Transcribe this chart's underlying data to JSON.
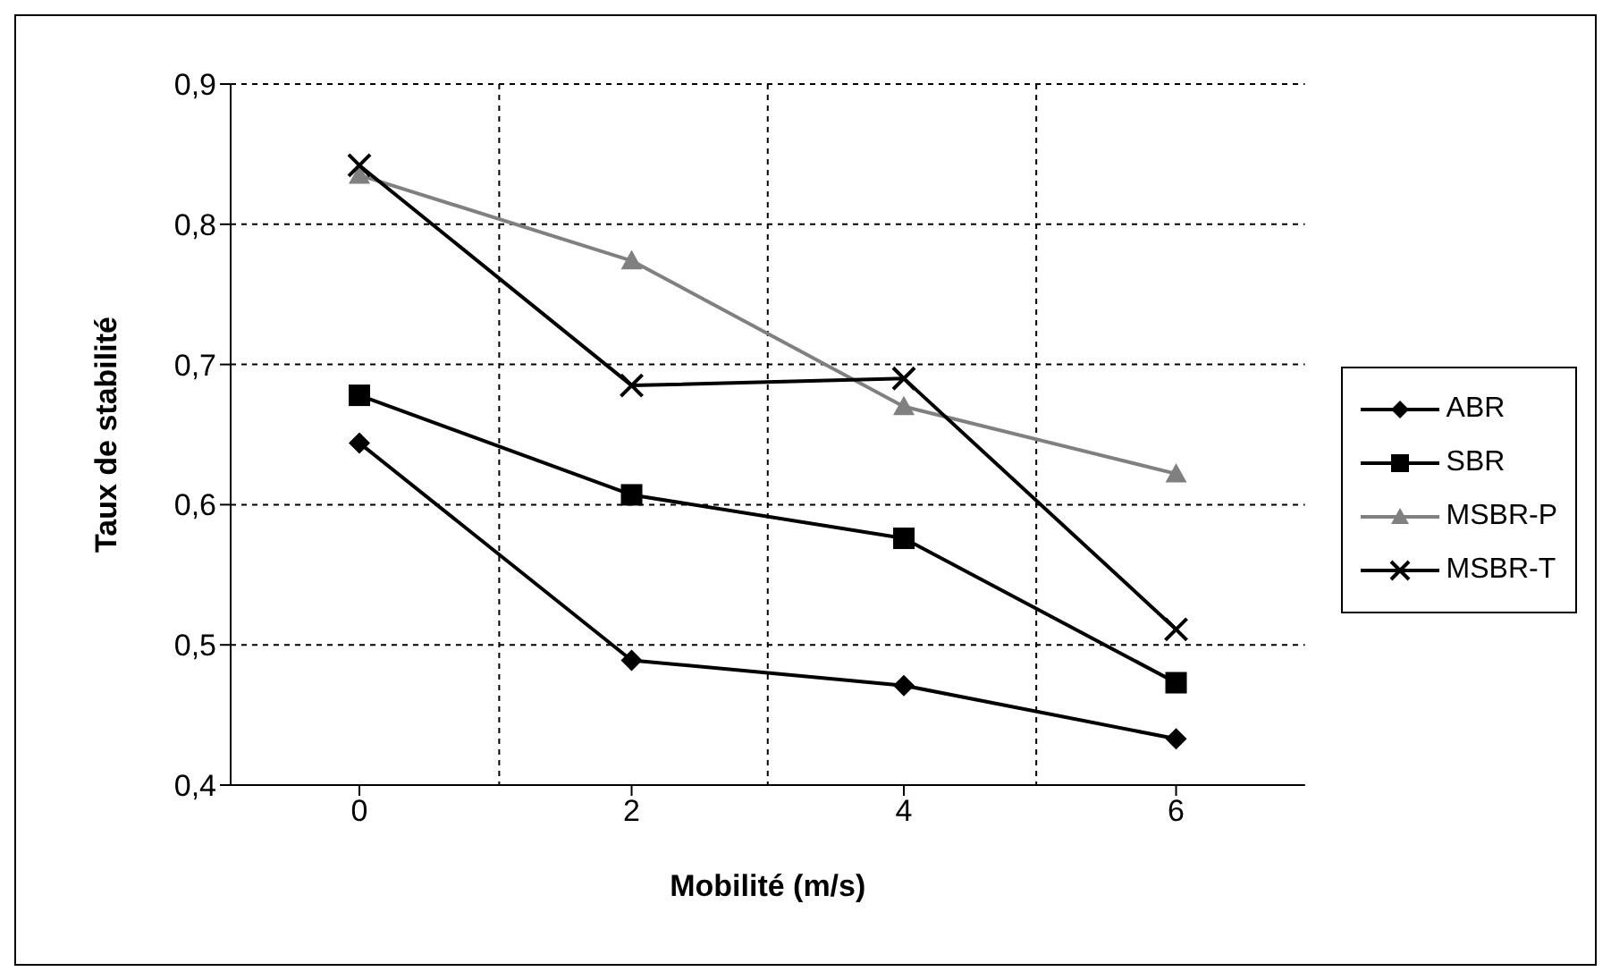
{
  "chart_data": {
    "type": "line",
    "xlabel": "Mobilité (m/s)",
    "ylabel": "Taux de stabilité",
    "categories": [
      "0",
      "2",
      "4",
      "6"
    ],
    "series": [
      {
        "name": "ABR",
        "color": "#000000",
        "marker": "diamond",
        "values": [
          0.644,
          0.489,
          0.471,
          0.433
        ]
      },
      {
        "name": "SBR",
        "color": "#000000",
        "marker": "square",
        "values": [
          0.678,
          0.607,
          0.576,
          0.473
        ]
      },
      {
        "name": "MSBR-P",
        "color": "#808080",
        "marker": "triangle",
        "values": [
          0.835,
          0.774,
          0.67,
          0.622
        ]
      },
      {
        "name": "MSBR-T",
        "color": "#000000",
        "marker": "cross",
        "values": [
          0.842,
          0.685,
          0.69,
          0.511
        ]
      }
    ],
    "ylim": [
      0.4,
      0.9
    ],
    "yticks": [
      {
        "value": 0.4,
        "label": "0,4"
      },
      {
        "value": 0.5,
        "label": "0,5"
      },
      {
        "value": 0.6,
        "label": "0,6"
      },
      {
        "value": 0.7,
        "label": "0,7"
      },
      {
        "value": 0.8,
        "label": "0,8"
      },
      {
        "value": 0.9,
        "label": "0,9"
      }
    ],
    "grid": true,
    "legend": "right",
    "line_style": "solid"
  }
}
